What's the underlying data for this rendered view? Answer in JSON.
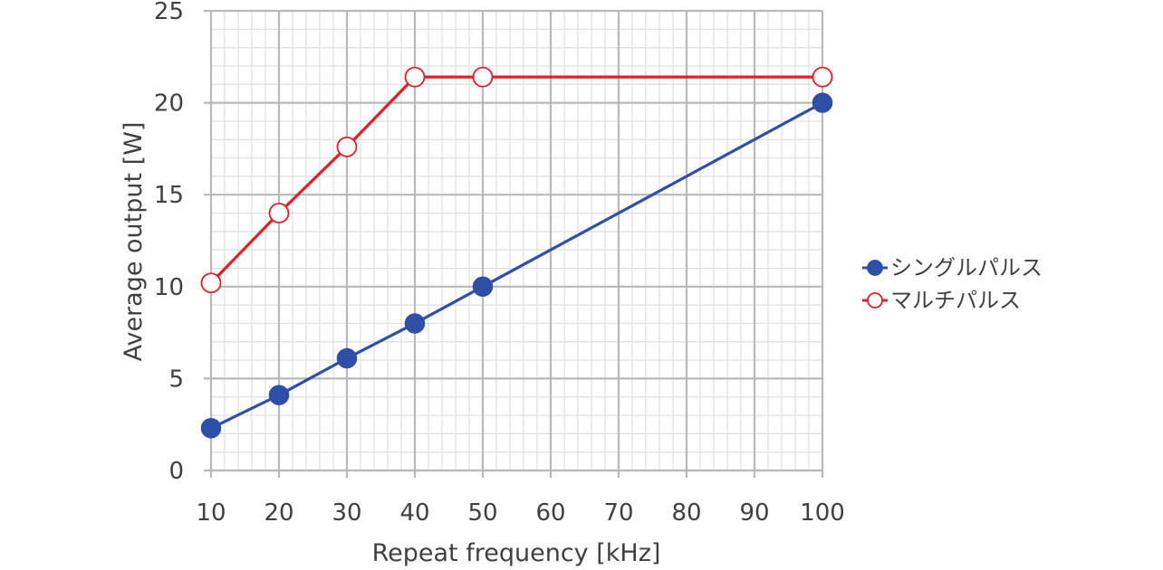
{
  "chart_data": {
    "type": "line",
    "x": [
      10,
      20,
      30,
      40,
      50,
      100
    ],
    "xticks": [
      10,
      20,
      30,
      40,
      50,
      60,
      70,
      80,
      90,
      100
    ],
    "yticks": [
      0,
      5,
      10,
      15,
      20,
      25
    ],
    "xlim": [
      10,
      100
    ],
    "ylim": [
      0,
      25
    ],
    "xlabel": "Repeat frequency [kHz]",
    "ylabel": "Average output [W]",
    "title": "",
    "grid": true,
    "legend_position": "right",
    "series": [
      {
        "name": "シングルパルス",
        "values": [
          2.3,
          4.1,
          6.1,
          8.0,
          10.0,
          20.0
        ],
        "color": "#2e4fa8",
        "marker": "filled-circle"
      },
      {
        "name": "マルチパルス",
        "values": [
          10.2,
          14.0,
          17.6,
          21.4,
          21.4,
          21.4
        ],
        "color": "#e31e24",
        "marker": "open-circle"
      }
    ]
  }
}
